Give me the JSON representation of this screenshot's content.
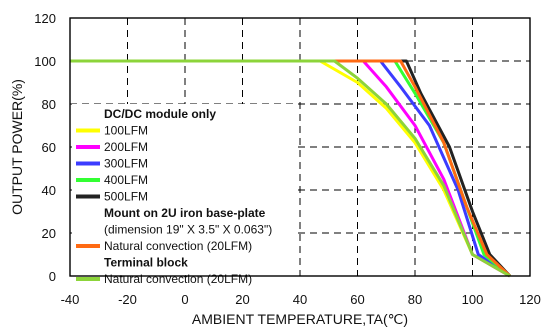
{
  "chart_data": {
    "type": "line",
    "xlabel": "AMBIENT TEMPERATURE,TA(℃)",
    "ylabel": "OUTPUT POWER(%)",
    "xlim": [
      -40,
      120
    ],
    "ylim": [
      0,
      120
    ],
    "xticks": [
      "-40",
      "-20",
      "0",
      "20",
      "40",
      "60",
      "80",
      "100",
      "120"
    ],
    "yticks": [
      "0",
      "20",
      "40",
      "60",
      "80",
      "100",
      "120"
    ],
    "grid": "dashed",
    "legend_placement": "left",
    "legend_groups": [
      {
        "heading": "DC/DC module only",
        "note": ""
      },
      {
        "heading": "Mount on 2U iron base-plate",
        "note": "(dimension 19\" X 3.5\" X 0.063\")"
      },
      {
        "heading": "Terminal block",
        "note": ""
      }
    ],
    "series": [
      {
        "name": "100LFM",
        "group": 0,
        "color": "#ffff00",
        "x": [
          -40,
          47,
          60,
          70,
          80,
          90,
          100,
          113
        ],
        "y": [
          100,
          100,
          90,
          78,
          62,
          40,
          10,
          0
        ]
      },
      {
        "name": "200LFM",
        "group": 0,
        "color": "#ff00ff",
        "x": [
          -40,
          62,
          70,
          80,
          90,
          100,
          113
        ],
        "y": [
          100,
          100,
          88,
          70,
          45,
          10,
          0
        ]
      },
      {
        "name": "300LFM",
        "group": 0,
        "color": "#3c3cff",
        "x": [
          -40,
          68,
          75,
          85,
          95,
          102,
          113
        ],
        "y": [
          100,
          100,
          88,
          70,
          40,
          10,
          0
        ]
      },
      {
        "name": "400LFM",
        "group": 0,
        "color": "#33ff33",
        "x": [
          -40,
          73,
          80,
          90,
          98,
          104,
          113
        ],
        "y": [
          100,
          100,
          85,
          62,
          32,
          10,
          0
        ]
      },
      {
        "name": "500LFM",
        "group": 0,
        "color": "#222222",
        "x": [
          -40,
          77,
          82,
          92,
          100,
          106,
          113
        ],
        "y": [
          100,
          100,
          85,
          60,
          30,
          10,
          0
        ]
      },
      {
        "name": "Natural convection (20LFM)",
        "group": 1,
        "color": "#ff6a13",
        "x": [
          -40,
          75,
          80,
          90,
          98,
          105,
          113
        ],
        "y": [
          100,
          100,
          88,
          62,
          32,
          10,
          0
        ]
      },
      {
        "name": "Natural convection (20LFM)",
        "group": 2,
        "color": "#8cd43a",
        "x": [
          -40,
          52,
          60,
          70,
          80,
          90,
          100,
          113
        ],
        "y": [
          100,
          100,
          92,
          80,
          64,
          42,
          10,
          0
        ]
      }
    ]
  }
}
